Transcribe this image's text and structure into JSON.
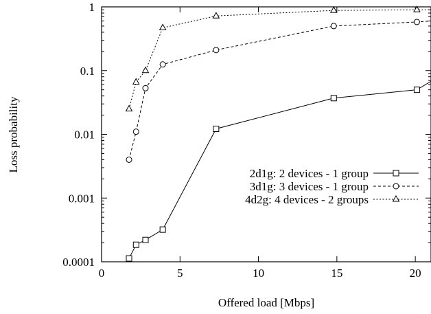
{
  "chart_data": {
    "type": "line",
    "title": "",
    "xlabel": "Offered load [Mbps]",
    "ylabel": "Loss probability",
    "xlim": [
      0,
      21
    ],
    "ylim": [
      0.0001,
      1
    ],
    "yscale": "log",
    "grid": false,
    "legend_position": "center-right",
    "x_ticks": [
      "0",
      "5",
      "10",
      "15",
      "20"
    ],
    "y_ticks": [
      "0.0001",
      "0.001",
      "0.01",
      "0.1",
      "1"
    ],
    "series": [
      {
        "name": "2d1g: 2 devices - 1 group",
        "marker": "square",
        "line_style": "solid",
        "x": [
          1.75,
          2.2,
          2.8,
          3.9,
          7.3,
          14.8,
          20.1,
          21
        ],
        "y": [
          0.000113,
          0.000185,
          0.00022,
          0.00032,
          0.0122,
          0.037,
          0.05,
          0.068
        ]
      },
      {
        "name": "3d1g: 3 devices - 1 group",
        "marker": "circle",
        "line_style": "dashed",
        "x": [
          1.75,
          2.2,
          2.8,
          3.9,
          7.3,
          14.8,
          20.1,
          21
        ],
        "y": [
          0.004,
          0.011,
          0.053,
          0.125,
          0.21,
          0.5,
          0.58,
          0.6
        ]
      },
      {
        "name": "4d2g: 4 devices - 2 groups",
        "marker": "triangle",
        "line_style": "dotted",
        "x": [
          1.75,
          2.2,
          2.8,
          3.9,
          7.3,
          14.8,
          20.1,
          21
        ],
        "y": [
          0.025,
          0.066,
          0.1,
          0.47,
          0.72,
          0.88,
          0.9,
          0.9
        ]
      }
    ]
  }
}
